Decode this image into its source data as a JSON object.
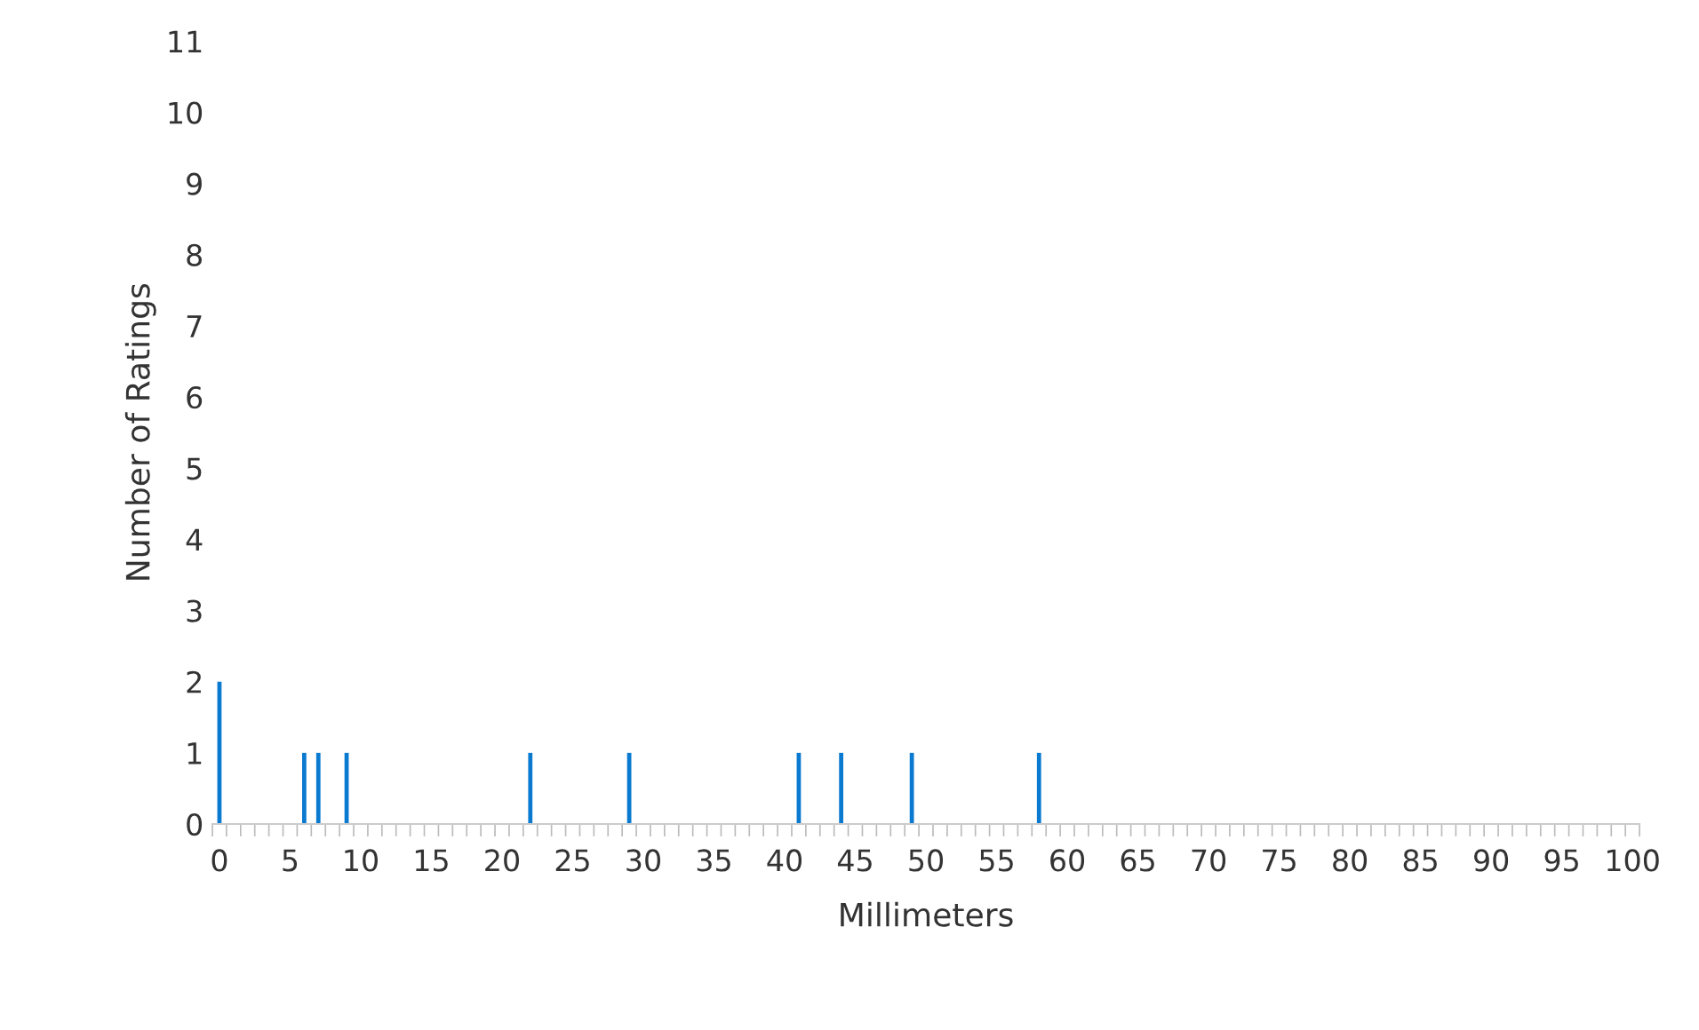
{
  "chart_data": {
    "type": "bar",
    "xlabel": "Millimeters",
    "ylabel": "Number of Ratings",
    "categories": [
      "0",
      null,
      null,
      null,
      null,
      "5",
      null,
      null,
      null,
      null,
      "10",
      null,
      null,
      null,
      null,
      "15",
      null,
      null,
      null,
      null,
      "20",
      null,
      null,
      null,
      null,
      "25",
      null,
      null,
      null,
      null,
      "30",
      null,
      null,
      null,
      null,
      "35",
      null,
      null,
      null,
      null,
      "40",
      null,
      null,
      null,
      null,
      "45",
      null,
      null,
      null,
      null,
      "50",
      null,
      null,
      null,
      null,
      "55",
      null,
      null,
      null,
      null,
      "60",
      null,
      null,
      null,
      null,
      "65",
      null,
      null,
      null,
      null,
      "70",
      null,
      null,
      null,
      null,
      "75",
      null,
      null,
      null,
      null,
      "80",
      null,
      null,
      null,
      null,
      "85",
      null,
      null,
      null,
      null,
      "90",
      null,
      null,
      null,
      null,
      "95",
      null,
      null,
      null,
      null,
      "100"
    ],
    "values": [
      2,
      0,
      0,
      0,
      0,
      0,
      1,
      1,
      0,
      1,
      0,
      0,
      0,
      0,
      0,
      0,
      0,
      0,
      0,
      0,
      0,
      0,
      1,
      0,
      0,
      0,
      0,
      0,
      0,
      1,
      0,
      0,
      0,
      0,
      0,
      0,
      0,
      0,
      0,
      0,
      0,
      1,
      0,
      0,
      1,
      0,
      0,
      0,
      0,
      1,
      0,
      0,
      0,
      0,
      0,
      0,
      0,
      0,
      1,
      0,
      0,
      0,
      0,
      0,
      0,
      0,
      0,
      0,
      0,
      0,
      0,
      0,
      0,
      0,
      0,
      0,
      0,
      0,
      0,
      0,
      0,
      0,
      0,
      0,
      0,
      0,
      0,
      0,
      0,
      0,
      0,
      0,
      0,
      0,
      0,
      0,
      0,
      0,
      0,
      0,
      0
    ],
    "color": "#0a7ad0",
    "ylim": [
      0,
      11
    ],
    "yticks": [
      0,
      1,
      2,
      3,
      4,
      5,
      6,
      7,
      8,
      9,
      10,
      11
    ],
    "grid": false
  }
}
